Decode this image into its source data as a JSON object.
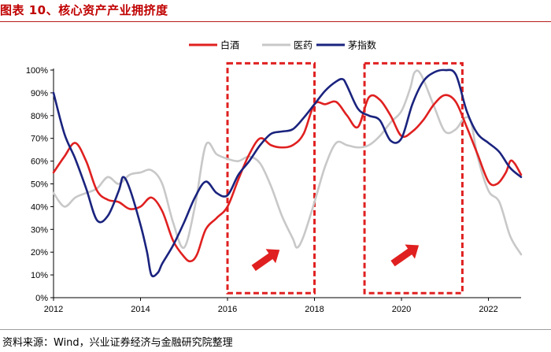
{
  "figure_title": "图表 10、核心资产产业拥挤度",
  "source_text": "资料来源：Wind，兴业证券经济与金融研究院整理",
  "chart_data": {
    "type": "line",
    "title": "",
    "xlabel": "",
    "ylabel": "",
    "xlim": [
      2012,
      2022.75
    ],
    "ylim": [
      0,
      100
    ],
    "x_ticks": [
      "2012",
      "2014",
      "2016",
      "2018",
      "2020",
      "2022"
    ],
    "y_ticks": [
      "0%",
      "10%",
      "20%",
      "30%",
      "40%",
      "50%",
      "60%",
      "70%",
      "80%",
      "90%",
      "100%"
    ],
    "legend_position": "top-center",
    "grid": false,
    "series": [
      {
        "name": "白酒",
        "color": "#e02020",
        "points": [
          [
            2012.0,
            55
          ],
          [
            2012.25,
            62
          ],
          [
            2012.5,
            68
          ],
          [
            2012.75,
            60
          ],
          [
            2013.0,
            47
          ],
          [
            2013.25,
            43
          ],
          [
            2013.5,
            42
          ],
          [
            2013.75,
            39
          ],
          [
            2014.0,
            40
          ],
          [
            2014.25,
            44
          ],
          [
            2014.5,
            38
          ],
          [
            2014.75,
            25
          ],
          [
            2015.0,
            18
          ],
          [
            2015.15,
            16
          ],
          [
            2015.3,
            19
          ],
          [
            2015.5,
            30
          ],
          [
            2015.75,
            35
          ],
          [
            2016.0,
            40
          ],
          [
            2016.25,
            52
          ],
          [
            2016.5,
            63
          ],
          [
            2016.75,
            70
          ],
          [
            2017.0,
            67
          ],
          [
            2017.25,
            66
          ],
          [
            2017.5,
            67
          ],
          [
            2017.75,
            72
          ],
          [
            2018.0,
            85
          ],
          [
            2018.25,
            85
          ],
          [
            2018.5,
            86
          ],
          [
            2018.75,
            80
          ],
          [
            2019.0,
            75
          ],
          [
            2019.25,
            88
          ],
          [
            2019.5,
            87
          ],
          [
            2019.75,
            80
          ],
          [
            2020.0,
            71
          ],
          [
            2020.25,
            73
          ],
          [
            2020.5,
            78
          ],
          [
            2020.75,
            85
          ],
          [
            2021.0,
            89
          ],
          [
            2021.25,
            86
          ],
          [
            2021.5,
            75
          ],
          [
            2021.75,
            63
          ],
          [
            2022.0,
            51
          ],
          [
            2022.2,
            50
          ],
          [
            2022.4,
            55
          ],
          [
            2022.5,
            60
          ],
          [
            2022.6,
            59
          ],
          [
            2022.75,
            54
          ]
        ]
      },
      {
        "name": "医药",
        "color": "#c8c8c8",
        "points": [
          [
            2012.0,
            46
          ],
          [
            2012.25,
            40
          ],
          [
            2012.5,
            44
          ],
          [
            2012.75,
            46
          ],
          [
            2013.0,
            48
          ],
          [
            2013.25,
            53
          ],
          [
            2013.5,
            50
          ],
          [
            2013.75,
            54
          ],
          [
            2014.0,
            55
          ],
          [
            2014.25,
            56
          ],
          [
            2014.5,
            50
          ],
          [
            2014.75,
            33
          ],
          [
            2015.0,
            22
          ],
          [
            2015.25,
            40
          ],
          [
            2015.5,
            67
          ],
          [
            2015.75,
            63
          ],
          [
            2016.0,
            61
          ],
          [
            2016.25,
            60
          ],
          [
            2016.5,
            62
          ],
          [
            2016.75,
            59
          ],
          [
            2017.0,
            49
          ],
          [
            2017.25,
            36
          ],
          [
            2017.5,
            26
          ],
          [
            2017.6,
            22
          ],
          [
            2017.75,
            27
          ],
          [
            2018.0,
            42
          ],
          [
            2018.25,
            58
          ],
          [
            2018.5,
            68
          ],
          [
            2018.75,
            67
          ],
          [
            2019.0,
            66
          ],
          [
            2019.25,
            67
          ],
          [
            2019.5,
            71
          ],
          [
            2019.75,
            77
          ],
          [
            2020.0,
            82
          ],
          [
            2020.2,
            92
          ],
          [
            2020.3,
            99
          ],
          [
            2020.45,
            98
          ],
          [
            2020.75,
            84
          ],
          [
            2021.0,
            73
          ],
          [
            2021.25,
            74
          ],
          [
            2021.45,
            79
          ],
          [
            2021.6,
            77
          ],
          [
            2021.75,
            62
          ],
          [
            2022.0,
            47
          ],
          [
            2022.25,
            42
          ],
          [
            2022.5,
            27
          ],
          [
            2022.75,
            19
          ]
        ]
      },
      {
        "name": "茅指数",
        "color": "#1a237e",
        "points": [
          [
            2012.0,
            90
          ],
          [
            2012.25,
            72
          ],
          [
            2012.5,
            61
          ],
          [
            2012.75,
            48
          ],
          [
            2013.0,
            34
          ],
          [
            2013.25,
            36
          ],
          [
            2013.5,
            47
          ],
          [
            2013.6,
            53
          ],
          [
            2013.75,
            48
          ],
          [
            2014.0,
            32
          ],
          [
            2014.15,
            20
          ],
          [
            2014.25,
            10
          ],
          [
            2014.4,
            11
          ],
          [
            2014.5,
            15
          ],
          [
            2014.75,
            23
          ],
          [
            2015.0,
            33
          ],
          [
            2015.25,
            44
          ],
          [
            2015.5,
            51
          ],
          [
            2015.75,
            46
          ],
          [
            2016.0,
            45
          ],
          [
            2016.25,
            54
          ],
          [
            2016.5,
            60
          ],
          [
            2016.75,
            67
          ],
          [
            2017.0,
            72
          ],
          [
            2017.25,
            73
          ],
          [
            2017.5,
            74
          ],
          [
            2017.75,
            79
          ],
          [
            2018.0,
            85
          ],
          [
            2018.25,
            91
          ],
          [
            2018.5,
            95
          ],
          [
            2018.65,
            96
          ],
          [
            2018.75,
            93
          ],
          [
            2019.0,
            83
          ],
          [
            2019.25,
            80
          ],
          [
            2019.5,
            78
          ],
          [
            2019.75,
            69
          ],
          [
            2020.0,
            70
          ],
          [
            2020.25,
            85
          ],
          [
            2020.5,
            95
          ],
          [
            2020.75,
            99
          ],
          [
            2021.0,
            100
          ],
          [
            2021.25,
            98
          ],
          [
            2021.5,
            82
          ],
          [
            2021.75,
            72
          ],
          [
            2022.0,
            68
          ],
          [
            2022.25,
            64
          ],
          [
            2022.5,
            57
          ],
          [
            2022.75,
            53
          ]
        ]
      }
    ],
    "highlight_boxes": [
      {
        "x_range": [
          2016.0,
          2018.0
        ],
        "y_range": [
          2,
          103
        ],
        "color": "#e02020",
        "style": "dashed"
      },
      {
        "x_range": [
          2019.15,
          2021.4
        ],
        "y_range": [
          2,
          103
        ],
        "color": "#e02020",
        "style": "dashed"
      }
    ],
    "arrows": [
      {
        "from": [
          2016.6,
          13
        ],
        "to": [
          2017.2,
          21
        ],
        "color": "#e02020"
      },
      {
        "from": [
          2019.8,
          15
        ],
        "to": [
          2020.4,
          23
        ],
        "color": "#e02020"
      }
    ]
  }
}
